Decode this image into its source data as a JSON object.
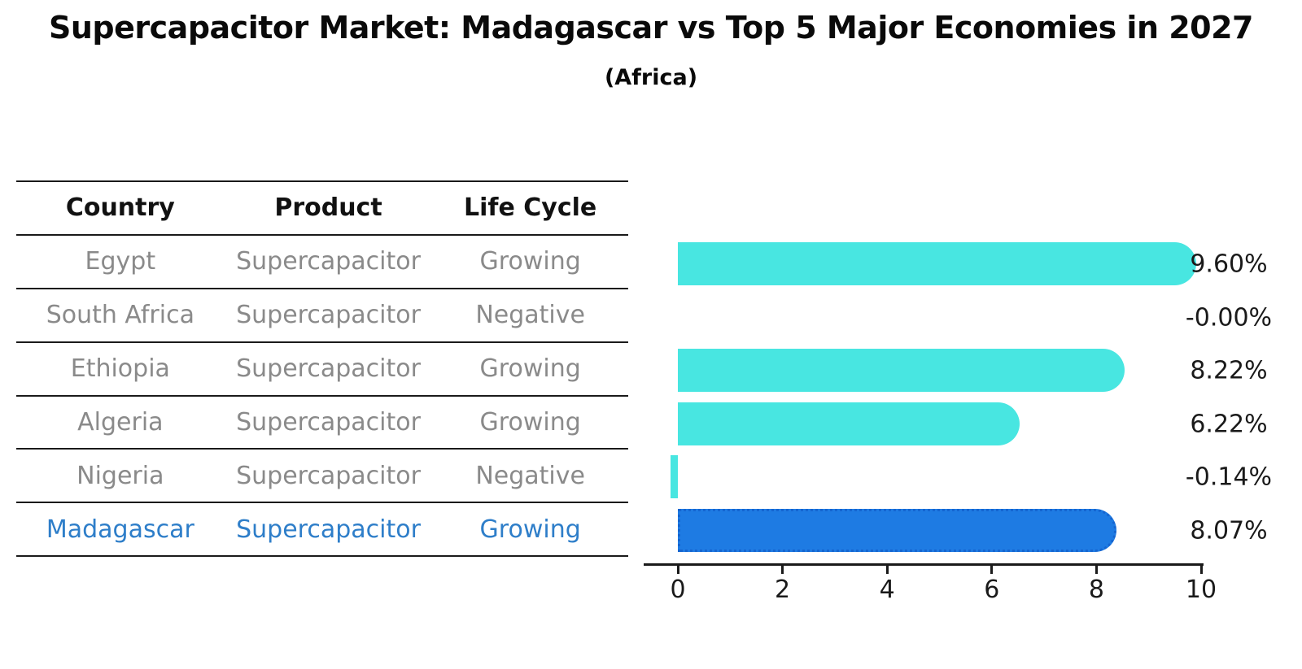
{
  "title": "Supercapacitor Market: Madagascar vs Top 5 Major Economies in 2027",
  "subtitle": "(Africa)",
  "table": {
    "headers": [
      "Country",
      "Product",
      "Life Cycle"
    ],
    "rows": [
      {
        "country": "Egypt",
        "product": "Supercapacitor",
        "life_cycle": "Growing",
        "highlight": false
      },
      {
        "country": "South Africa",
        "product": "Supercapacitor",
        "life_cycle": "Negative",
        "highlight": false
      },
      {
        "country": "Ethiopia",
        "product": "Supercapacitor",
        "life_cycle": "Growing",
        "highlight": false
      },
      {
        "country": "Algeria",
        "product": "Supercapacitor",
        "life_cycle": "Growing",
        "highlight": false
      },
      {
        "country": "Nigeria",
        "product": "Supercapacitor",
        "life_cycle": "Negative",
        "highlight": false
      },
      {
        "country": "Madagascar",
        "product": "Supercapacitor",
        "life_cycle": "Growing",
        "highlight": true
      }
    ]
  },
  "chart_data": {
    "type": "bar",
    "orientation": "horizontal",
    "title": "Supercapacitor Market: Madagascar vs Top 5 Major Economies in 2027",
    "subtitle": "(Africa)",
    "categories": [
      "Egypt",
      "South Africa",
      "Ethiopia",
      "Algeria",
      "Nigeria",
      "Madagascar"
    ],
    "values": [
      9.6,
      -0.0,
      8.22,
      6.22,
      -0.14,
      8.07
    ],
    "value_labels": [
      "9.60%",
      "-0.00%",
      "8.22%",
      "6.22%",
      "-0.14%",
      "8.07%"
    ],
    "unit": "%",
    "xticks": [
      "0",
      "2",
      "4",
      "6",
      "8",
      "10"
    ],
    "xtick_values": [
      0,
      2,
      4,
      6,
      8,
      10
    ],
    "xlim": [
      0,
      10
    ],
    "grid": false,
    "legend": false,
    "highlight_index": 5,
    "bar_color": "#48E6E1",
    "highlight_bar_color": "#1E7BE3",
    "highlight_border_color": "#1565D0",
    "highlight_text_color": "#2E7EC9"
  }
}
